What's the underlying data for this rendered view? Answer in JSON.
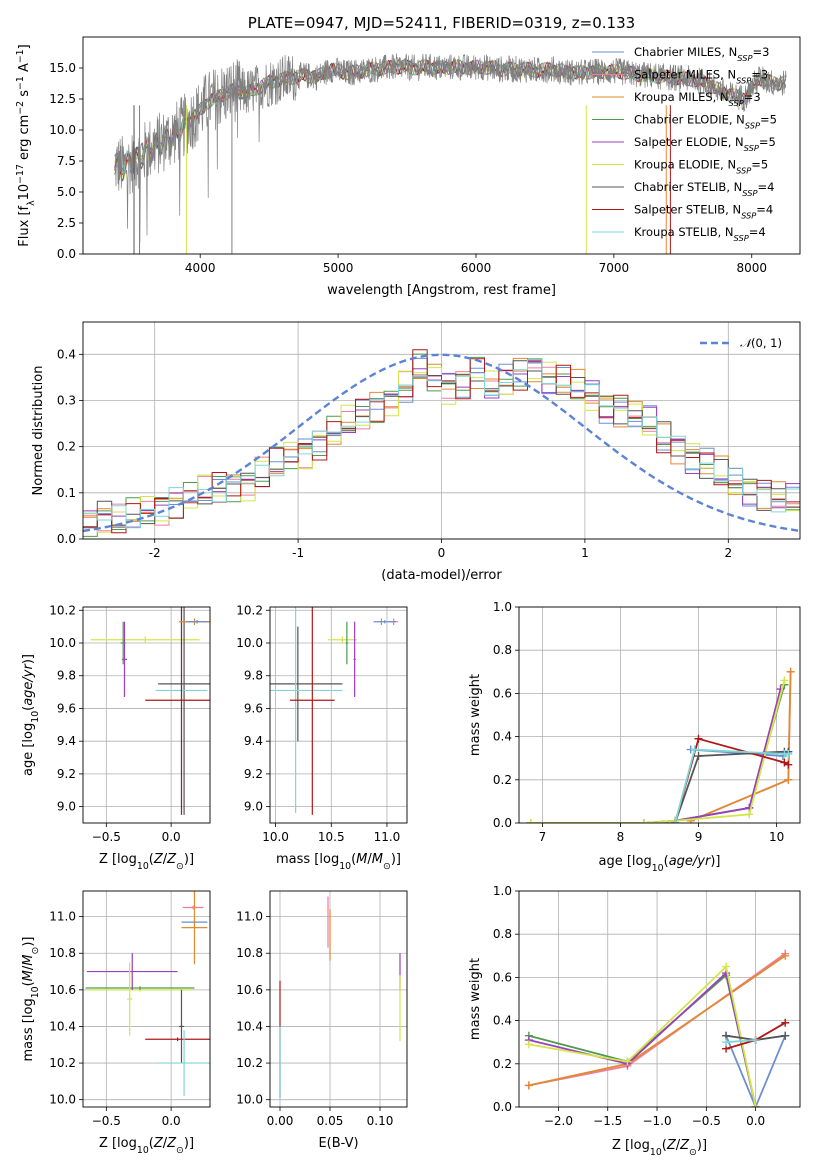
{
  "colors": {
    "Chabrier MILES": "#6a8fd6",
    "Salpeter MILES": "#f07c9a",
    "Kroupa MILES": "#e08a30",
    "Chabrier ELODIE": "#4f9a4f",
    "Salpeter ELODIE": "#9a3fc0",
    "Kroupa ELODIE": "#d2e64a",
    "Chabrier STELIB": "#555555",
    "Salpeter STELIB": "#b01818",
    "Kroupa STELIB": "#7fd6d8"
  },
  "chart_data": [
    {
      "id": "spectrum",
      "type": "line",
      "title": "PLATE=0947, MJD=52411, FIBERID=0319, z=0.133",
      "xlabel": "wavelength [Angstrom, rest frame]",
      "ylabel": "Flux [f_λ10^{-17} erg cm^{-2} s^{-1} A^{-1}]",
      "xlim": [
        3150,
        8350
      ],
      "ylim": [
        0,
        17.5
      ],
      "xticks": [
        4000,
        5000,
        6000,
        7000,
        8000
      ],
      "yticks": [
        0.0,
        2.5,
        5.0,
        7.5,
        10.0,
        12.5,
        15.0
      ],
      "ytick_labels": [
        "0.0",
        "2.5",
        "5.0",
        "7.5",
        "10.0",
        "12.5",
        "15.0"
      ],
      "legend": [
        "Chabrier MILES, N_SSP=3",
        "Salpeter MILES, N_SSP=3",
        "Kroupa MILES, N_SSP=3",
        "Chabrier ELODIE, N_SSP=5",
        "Salpeter ELODIE, N_SSP=5",
        "Kroupa ELODIE, N_SSP=5",
        "Chabrier STELIB, N_SSP=4",
        "Salpeter STELIB, N_SSP=4",
        "Kroupa STELIB, N_SSP=4"
      ],
      "legend_placement": "upper right",
      "data": {
        "wavelength": [
          3380,
          3450,
          3550,
          3650,
          3750,
          3850,
          3950,
          4050,
          4150,
          4250,
          4350,
          4450,
          4550,
          4650,
          4750,
          4850,
          4950,
          5050,
          5150,
          5250,
          5350,
          5450,
          5550,
          5650,
          5750,
          5850,
          5950,
          6050,
          6150,
          6250,
          6350,
          6450,
          6550,
          6650,
          6750,
          6850,
          6950,
          7050,
          7150,
          7250,
          7350,
          7450,
          7550,
          7650,
          7750,
          7850,
          7950,
          8050,
          8150
        ],
        "flux": [
          7.2,
          7.0,
          7.8,
          8.6,
          9.2,
          10.0,
          11.0,
          12.2,
          12.8,
          13.2,
          13.0,
          13.6,
          14.0,
          14.2,
          14.4,
          14.3,
          14.9,
          14.6,
          14.7,
          14.9,
          15.0,
          15.1,
          15.0,
          15.1,
          15.0,
          15.1,
          15.0,
          15.1,
          14.9,
          14.9,
          14.9,
          14.8,
          14.9,
          14.7,
          14.6,
          14.7,
          14.7,
          14.7,
          14.5,
          14.4,
          14.3,
          14.2,
          14.1,
          13.9,
          13.3,
          12.8,
          12.6,
          14.2,
          13.8
        ]
      }
    },
    {
      "id": "residuals",
      "type": "step",
      "xlabel": "(data-model)/error",
      "ylabel": "Normed distribution",
      "xlim": [
        -2.5,
        2.5
      ],
      "ylim": [
        0,
        0.47
      ],
      "xticks": [
        -2,
        -1,
        0,
        1,
        2
      ],
      "yticks": [
        0.0,
        0.1,
        0.2,
        0.3,
        0.4
      ],
      "legend": [
        "N(0,1)"
      ],
      "legend_placement": "upper right",
      "bin_width": 0.1,
      "bin_start": -2.5,
      "histogram": [
        0.04,
        0.05,
        0.04,
        0.05,
        0.06,
        0.07,
        0.08,
        0.09,
        0.1,
        0.11,
        0.12,
        0.12,
        0.14,
        0.16,
        0.18,
        0.19,
        0.21,
        0.23,
        0.25,
        0.27,
        0.29,
        0.3,
        0.33,
        0.37,
        0.35,
        0.33,
        0.34,
        0.36,
        0.33,
        0.34,
        0.36,
        0.37,
        0.35,
        0.34,
        0.33,
        0.31,
        0.29,
        0.28,
        0.27,
        0.25,
        0.22,
        0.2,
        0.18,
        0.16,
        0.14,
        0.12,
        0.11,
        0.1,
        0.09,
        0.08
      ]
    },
    {
      "id": "age_vs_Z",
      "type": "errorbar",
      "xlabel": "Z [log10(Z/Z⊙)]",
      "ylabel": "age [log10(age/yr)]",
      "xlim": [
        -0.68,
        0.3
      ],
      "ylim": [
        8.9,
        10.22
      ],
      "xticks": [
        -0.5,
        0.0
      ],
      "xtick_labels": [
        "−0.5",
        "0.0"
      ],
      "yticks": [
        9.0,
        9.2,
        9.4,
        9.6,
        9.8,
        10.0,
        10.2
      ],
      "points": [
        {
          "model": "Kroupa ELODIE",
          "x": -0.2,
          "y": 10.02,
          "xerr": 0.42,
          "yerr": 0.02
        },
        {
          "model": "Salpeter ELODIE",
          "x": -0.36,
          "y": 9.9,
          "xerr": 0.02,
          "yerr": 0.23
        },
        {
          "model": "Chabrier ELODIE",
          "x": -0.37,
          "y": 10.0,
          "xerr": 0.02,
          "yerr": 0.13
        },
        {
          "model": "Chabrier STELIB",
          "x": 0.1,
          "y": 9.75,
          "xerr": 0.2,
          "yerr": 0.8
        },
        {
          "model": "Kroupa STELIB",
          "x": 0.08,
          "y": 9.71,
          "xerr": 0.2,
          "yerr": 0.75
        },
        {
          "model": "Salpeter STELIB",
          "x": 0.08,
          "y": 9.65,
          "xerr": 0.28,
          "yerr": 0.7
        },
        {
          "model": "Salpeter MILES",
          "x": 0.2,
          "y": 10.13,
          "xerr": 0.1,
          "yerr": 0.01
        },
        {
          "model": "Kroupa MILES",
          "x": 0.18,
          "y": 10.13,
          "xerr": 0.12,
          "yerr": 0.02
        },
        {
          "model": "Chabrier MILES",
          "x": 0.2,
          "y": 10.13,
          "xerr": 0.08,
          "yerr": 0.01
        }
      ]
    },
    {
      "id": "age_vs_mass",
      "type": "errorbar",
      "xlabel": "mass [log10(M/M⊙)]",
      "xlim": [
        9.95,
        11.18
      ],
      "ylim": [
        8.9,
        10.22
      ],
      "xticks": [
        10.0,
        10.5,
        11.0
      ],
      "yticks": [
        9.0,
        9.2,
        9.4,
        9.6,
        9.8,
        10.0,
        10.2
      ],
      "points": [
        {
          "model": "Kroupa ELODIE",
          "x": 10.6,
          "y": 10.02,
          "xerr": 0.13,
          "yerr": 0.02
        },
        {
          "model": "Salpeter ELODIE",
          "x": 10.71,
          "y": 9.9,
          "xerr": 0.01,
          "yerr": 0.23
        },
        {
          "model": "Chabrier ELODIE",
          "x": 10.64,
          "y": 10.0,
          "xerr": 0.01,
          "yerr": 0.13
        },
        {
          "model": "Chabrier STELIB",
          "x": 10.2,
          "y": 9.75,
          "xerr": 0.4,
          "yerr": 0.35
        },
        {
          "model": "Kroupa STELIB",
          "x": 10.18,
          "y": 9.71,
          "xerr": 0.42,
          "yerr": 0.75
        },
        {
          "model": "Salpeter STELIB",
          "x": 10.33,
          "y": 9.65,
          "xerr": 0.2,
          "yerr": 0.7
        },
        {
          "model": "Salpeter MILES",
          "x": 11.06,
          "y": 10.13,
          "xerr": 0.04,
          "yerr": 0.02
        },
        {
          "model": "Kroupa MILES",
          "x": 10.95,
          "y": 10.13,
          "xerr": 0.01,
          "yerr": 0.02
        },
        {
          "model": "Chabrier MILES",
          "x": 10.98,
          "y": 10.13,
          "xerr": 0.1,
          "yerr": 0.01
        }
      ]
    },
    {
      "id": "massweight_vs_age",
      "type": "line",
      "xlabel": "age [log10(age/yr)]",
      "ylabel": "mass weight",
      "xlim": [
        6.7,
        10.3
      ],
      "ylim": [
        0,
        1.0
      ],
      "xticks": [
        7,
        8,
        9,
        10
      ],
      "yticks": [
        0.0,
        0.2,
        0.4,
        0.6,
        0.8,
        1.0
      ],
      "series": [
        {
          "model": "Chabrier MILES",
          "x": [
            8.9,
            10.08,
            10.15
          ],
          "y": [
            0.34,
            0.31,
            0.33
          ]
        },
        {
          "model": "Salpeter MILES",
          "x": [
            8.9,
            10.15,
            10.18
          ],
          "y": [
            0.01,
            0.2,
            0.7
          ]
        },
        {
          "model": "Kroupa MILES",
          "x": [
            8.9,
            10.15,
            10.18
          ],
          "y": [
            0.01,
            0.2,
            0.7
          ]
        },
        {
          "model": "Chabrier ELODIE",
          "x": [
            6.85,
            8.3,
            8.7,
            9.65,
            10.1
          ],
          "y": [
            0.0,
            0.0,
            0.01,
            0.07,
            0.64
          ]
        },
        {
          "model": "Salpeter ELODIE",
          "x": [
            6.85,
            8.3,
            8.7,
            9.65,
            10.05
          ],
          "y": [
            0.0,
            0.0,
            0.01,
            0.07,
            0.62
          ]
        },
        {
          "model": "Kroupa ELODIE",
          "x": [
            6.85,
            8.3,
            8.7,
            9.65,
            10.1
          ],
          "y": [
            0.0,
            0.0,
            0.01,
            0.04,
            0.66
          ]
        },
        {
          "model": "Chabrier STELIB",
          "x": [
            8.7,
            9.0,
            10.1,
            10.15
          ],
          "y": [
            0.0,
            0.31,
            0.33,
            0.33
          ]
        },
        {
          "model": "Salpeter STELIB",
          "x": [
            8.7,
            9.0,
            10.1,
            10.15
          ],
          "y": [
            0.0,
            0.39,
            0.28,
            0.27
          ]
        },
        {
          "model": "Kroupa STELIB",
          "x": [
            8.7,
            8.95,
            10.1,
            10.15
          ],
          "y": [
            0.0,
            0.34,
            0.32,
            0.32
          ]
        }
      ]
    },
    {
      "id": "mass_vs_Z",
      "type": "errorbar",
      "xlabel": "Z [log10(Z/Z⊙)]",
      "ylabel": "mass [log10(M/M⊙)]",
      "xlim": [
        -0.68,
        0.3
      ],
      "ylim": [
        9.96,
        11.14
      ],
      "xticks": [
        -0.5,
        0.0
      ],
      "xtick_labels": [
        "−0.5",
        "0.0"
      ],
      "yticks": [
        10.0,
        10.2,
        10.4,
        10.6,
        10.8,
        11.0
      ],
      "points": [
        {
          "model": "Kroupa ELODIE",
          "x": -0.24,
          "y": 10.6,
          "xerr": 0.4,
          "yerr": 0.01
        },
        {
          "model": "Chabrier ELODIE",
          "x": -0.24,
          "y": 10.61,
          "xerr": 0.42,
          "yerr": 0.01
        },
        {
          "model": "Salpeter ELODIE",
          "x": -0.3,
          "y": 10.7,
          "xerr": 0.35,
          "yerr": 0.1
        },
        {
          "model": "Kroupa ELODIE 2",
          "x": -0.32,
          "y": 10.55,
          "xerr": 0.02,
          "yerr": 0.2
        },
        {
          "model": "Chabrier STELIB",
          "x": 0.08,
          "y": 10.4,
          "xerr": 0.02,
          "yerr": 0.2
        },
        {
          "model": "Salpeter STELIB",
          "x": 0.05,
          "y": 10.33,
          "xerr": 0.25,
          "yerr": 0.01
        },
        {
          "model": "Kroupa STELIB",
          "x": 0.1,
          "y": 10.2,
          "xerr": 0.2,
          "yerr": 0.18
        },
        {
          "model": "Salpeter MILES",
          "x": 0.17,
          "y": 11.05,
          "xerr": 0.08,
          "yerr": 0.01
        },
        {
          "model": "Chabrier MILES",
          "x": 0.18,
          "y": 10.97,
          "xerr": 0.1,
          "yerr": 0.01
        },
        {
          "model": "Kroupa MILES",
          "x": 0.18,
          "y": 10.94,
          "xerr": 0.1,
          "yerr": 0.2
        }
      ]
    },
    {
      "id": "mass_vs_EBV",
      "type": "errorbar",
      "xlabel": "E(B-V)",
      "xlim": [
        -0.01,
        0.127
      ],
      "ylim": [
        9.96,
        11.14
      ],
      "xticks": [
        0.0,
        0.05,
        0.1
      ],
      "xtick_labels": [
        "0.00",
        "0.05",
        "0.10"
      ],
      "yticks": [
        10.0,
        10.2,
        10.4,
        10.6,
        10.8,
        11.0
      ],
      "points": [
        {
          "model": "Salpeter STELIB",
          "x": 0.0,
          "y": 10.33,
          "xerr": 0.0,
          "yerr": 0.32
        },
        {
          "model": "Kroupa STELIB",
          "x": 0.0,
          "y": 10.2,
          "xerr": 0.0,
          "yerr": 0.2
        },
        {
          "model": "Salpeter MILES",
          "x": 0.048,
          "y": 10.97,
          "xerr": 0.0,
          "yerr": 0.14
        },
        {
          "model": "Kroupa MILES",
          "x": 0.05,
          "y": 10.9,
          "xerr": 0.0,
          "yerr": 0.14
        },
        {
          "model": "Salpeter ELODIE",
          "x": 0.12,
          "y": 10.7,
          "xerr": 0.0,
          "yerr": 0.1
        },
        {
          "model": "Kroupa ELODIE",
          "x": 0.12,
          "y": 10.5,
          "xerr": 0.0,
          "yerr": 0.18
        }
      ]
    },
    {
      "id": "massweight_vs_Z",
      "type": "line",
      "xlabel": "Z [log10(Z/Z⊙)]",
      "ylabel": "mass weight",
      "xlim": [
        -2.4,
        0.45
      ],
      "ylim": [
        0,
        1.0
      ],
      "xticks": [
        -2.0,
        -1.5,
        -1.0,
        -0.5,
        0.0
      ],
      "xtick_labels": [
        "−2.0",
        "−1.5",
        "−1.0",
        "−0.5",
        "0.0"
      ],
      "yticks": [
        0.0,
        0.2,
        0.4,
        0.6,
        0.8,
        1.0
      ],
      "series": [
        {
          "model": "Chabrier MILES",
          "x": [
            -0.3,
            0.0,
            0.3
          ],
          "y": [
            0.33,
            0.0,
            0.33
          ]
        },
        {
          "model": "Salpeter MILES",
          "x": [
            -2.3,
            -1.3,
            0.3
          ],
          "y": [
            0.1,
            0.19,
            0.71
          ]
        },
        {
          "model": "Kroupa MILES",
          "x": [
            -2.3,
            -1.3,
            0.3
          ],
          "y": [
            0.1,
            0.2,
            0.7
          ]
        },
        {
          "model": "Chabrier ELODIE",
          "x": [
            -2.3,
            -1.3,
            -0.3,
            0.0
          ],
          "y": [
            0.33,
            0.21,
            0.61,
            0.0
          ]
        },
        {
          "model": "Salpeter ELODIE",
          "x": [
            -2.3,
            -1.3,
            -0.3,
            0.0
          ],
          "y": [
            0.31,
            0.2,
            0.62,
            0.0
          ]
        },
        {
          "model": "Kroupa ELODIE",
          "x": [
            -2.3,
            -1.3,
            -0.3,
            0.0
          ],
          "y": [
            0.29,
            0.21,
            0.65,
            0.0
          ]
        },
        {
          "model": "Chabrier STELIB",
          "x": [
            -0.3,
            0.0,
            0.3
          ],
          "y": [
            0.33,
            0.31,
            0.33
          ]
        },
        {
          "model": "Salpeter STELIB",
          "x": [
            -0.3,
            0.0,
            0.3
          ],
          "y": [
            0.27,
            0.31,
            0.39
          ]
        },
        {
          "model": "Kroupa STELIB",
          "x": [
            -0.3,
            0.0
          ],
          "y": [
            0.3,
            0.31
          ]
        }
      ]
    }
  ]
}
